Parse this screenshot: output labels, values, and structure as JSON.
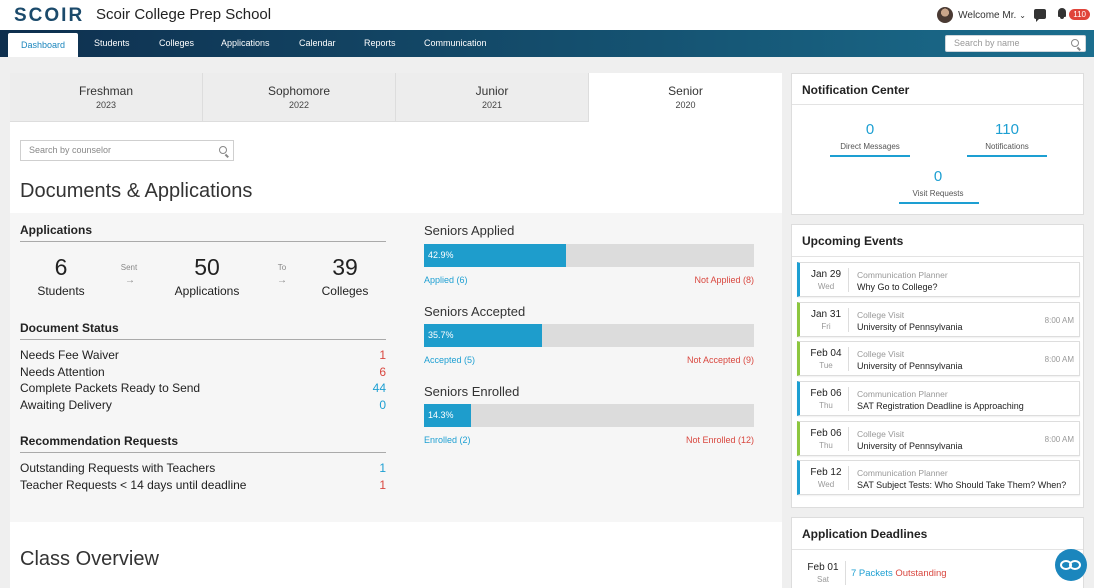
{
  "app": {
    "logo": "SCOIR",
    "school_name": "Scoir College Prep School"
  },
  "header": {
    "welcome": "Welcome Mr.",
    "chevron": "⌄",
    "notification_count": "110"
  },
  "nav": {
    "items": [
      {
        "label": "Dashboard",
        "active": true
      },
      {
        "label": "Students"
      },
      {
        "label": "Colleges"
      },
      {
        "label": "Applications"
      },
      {
        "label": "Calendar"
      },
      {
        "label": "Reports"
      },
      {
        "label": "Communication"
      }
    ],
    "search_placeholder": "Search by name"
  },
  "class_tabs": [
    {
      "label": "Freshman",
      "year": "2023"
    },
    {
      "label": "Sophomore",
      "year": "2022"
    },
    {
      "label": "Junior",
      "year": "2021"
    },
    {
      "label": "Senior",
      "year": "2020",
      "active": true
    }
  ],
  "counselor_search": {
    "placeholder": "Search by counselor"
  },
  "documents": {
    "title": "Documents & Applications",
    "applications_heading": "Applications",
    "students": {
      "value": "6",
      "label": "Students"
    },
    "sent_label": "Sent",
    "applications": {
      "value": "50",
      "label": "Applications"
    },
    "to_label": "To",
    "colleges": {
      "value": "39",
      "label": "Colleges"
    },
    "arrow": "→",
    "document_status_heading": "Document Status",
    "document_status": [
      {
        "label": "Needs Fee Waiver",
        "value": "1",
        "color": "#d9473f"
      },
      {
        "label": "Needs Attention",
        "value": "6",
        "color": "#d9473f"
      },
      {
        "label": "Complete Packets Ready to Send",
        "value": "44",
        "color": "#1d9fd2"
      },
      {
        "label": "Awaiting Delivery",
        "value": "0",
        "color": "#1d9fd2"
      }
    ],
    "recommendation_heading": "Recommendation Requests",
    "recommendations": [
      {
        "label": "Outstanding Requests with Teachers",
        "value": "1",
        "color": "#1d9fd2"
      },
      {
        "label": "Teacher Requests < 14 days until deadline",
        "value": "1",
        "color": "#d9473f"
      }
    ]
  },
  "seniors": {
    "applied": {
      "title": "Seniors Applied",
      "percent_label": "42.9%",
      "fraction": 0.429,
      "left": "Applied (6)",
      "right": "Not Applied (8)"
    },
    "accepted": {
      "title": "Seniors Accepted",
      "percent_label": "35.7%",
      "fraction": 0.357,
      "left": "Accepted (5)",
      "right": "Not Accepted (9)"
    },
    "enrolled": {
      "title": "Seniors Enrolled",
      "percent_label": "14.3%",
      "fraction": 0.143,
      "left": "Enrolled (2)",
      "right": "Not Enrolled (12)"
    }
  },
  "class_overview": {
    "title": "Class Overview"
  },
  "notification_center": {
    "title": "Notification Center",
    "direct_messages": {
      "value": "0",
      "label": "Direct Messages"
    },
    "notifications": {
      "value": "110",
      "label": "Notifications"
    },
    "visit_requests": {
      "value": "0",
      "label": "Visit Requests"
    }
  },
  "upcoming_events": {
    "title": "Upcoming Events",
    "items": [
      {
        "date": "Jan 29",
        "day": "Wed",
        "type": "Communication Planner",
        "name": "Why Go to College?",
        "time": "",
        "color": "#1d9fd2"
      },
      {
        "date": "Jan 31",
        "day": "Fri",
        "type": "College Visit",
        "name": "University of Pennsylvania",
        "time": "8:00 AM",
        "color": "#8cc63f"
      },
      {
        "date": "Feb 04",
        "day": "Tue",
        "type": "College Visit",
        "name": "University of Pennsylvania",
        "time": "8:00 AM",
        "color": "#8cc63f"
      },
      {
        "date": "Feb 06",
        "day": "Thu",
        "type": "Communication Planner",
        "name": "SAT Registration Deadline is Approaching",
        "time": "",
        "color": "#1d9fd2"
      },
      {
        "date": "Feb 06",
        "day": "Thu",
        "type": "College Visit",
        "name": "University of Pennsylvania",
        "time": "8:00 AM",
        "color": "#8cc63f"
      },
      {
        "date": "Feb 12",
        "day": "Wed",
        "type": "Communication Planner",
        "name": "SAT Subject Tests: Who Should Take Them? When?",
        "time": "",
        "color": "#1d9fd2"
      }
    ]
  },
  "application_deadlines": {
    "title": "Application Deadlines",
    "items": [
      {
        "date": "Feb 01",
        "day": "Sat",
        "count_label": "7 Packets",
        "status": "Outstanding"
      }
    ]
  }
}
